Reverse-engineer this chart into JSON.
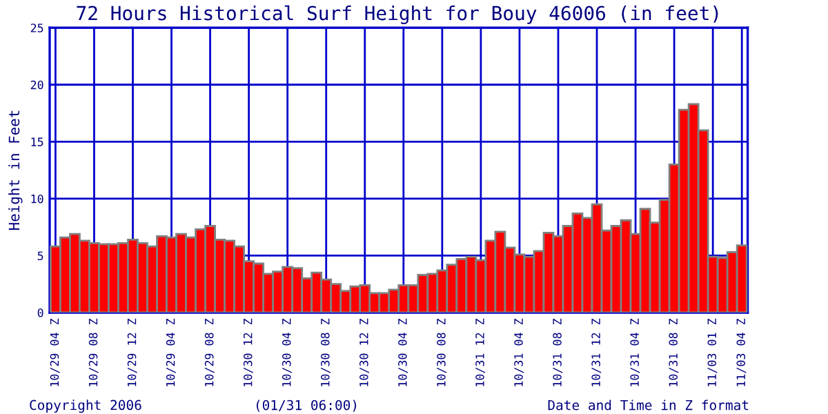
{
  "chart_data": {
    "type": "bar",
    "title": "72 Hours Historical Surf Height for Bouy 46006 (in feet)",
    "ylabel": "Height in Feet",
    "xlabel": "Date and Time in Z format",
    "annotations": [
      "Copyright 2006",
      "(01/31 06:00)"
    ],
    "categories": [
      "10/29 04 Z",
      null,
      null,
      null,
      "10/29 08 Z",
      null,
      null,
      null,
      "10/29 12 Z",
      null,
      null,
      null,
      "10/29 04 Z",
      null,
      null,
      null,
      "10/29 08 Z",
      null,
      null,
      null,
      "10/30 12 Z",
      null,
      null,
      null,
      "10/30 04 Z",
      null,
      null,
      null,
      "10/30 08 Z",
      null,
      null,
      null,
      "10/30 12 Z",
      null,
      null,
      null,
      "10/30 04 Z",
      null,
      null,
      null,
      "10/30 08 Z",
      null,
      null,
      null,
      "10/31 12 Z",
      null,
      null,
      null,
      "10/31 04 Z",
      null,
      null,
      null,
      "10/31 08 Z",
      null,
      null,
      null,
      "10/31 12 Z",
      null,
      null,
      null,
      "10/31 04 Z",
      null,
      null,
      null,
      "10/31 08 Z",
      null,
      null,
      null,
      "11/03 01 Z",
      null,
      null,
      "11/03 04 Z"
    ],
    "values": [
      5.8,
      6.6,
      6.9,
      6.3,
      6.1,
      6.0,
      6.0,
      6.1,
      6.4,
      6.1,
      5.8,
      6.7,
      6.6,
      6.9,
      6.6,
      7.3,
      7.6,
      6.4,
      6.3,
      5.8,
      4.5,
      4.3,
      3.4,
      3.6,
      4.0,
      3.9,
      3.0,
      3.5,
      2.9,
      2.5,
      1.9,
      2.3,
      2.4,
      1.7,
      1.7,
      2.0,
      2.4,
      2.4,
      3.3,
      3.4,
      3.7,
      4.2,
      4.7,
      4.9,
      4.6,
      6.3,
      7.1,
      5.7,
      5.1,
      4.9,
      5.4,
      7.0,
      6.7,
      7.6,
      8.7,
      8.3,
      9.5,
      7.2,
      7.6,
      8.1,
      6.9,
      9.1,
      7.9,
      9.9,
      13.0,
      17.8,
      18.3,
      16.0,
      4.9,
      4.8,
      5.3,
      5.9
    ],
    "color": "#ff0000",
    "ylim": [
      0,
      25
    ],
    "yticks": [
      0,
      5,
      10,
      15,
      20,
      25
    ],
    "grid": true
  }
}
